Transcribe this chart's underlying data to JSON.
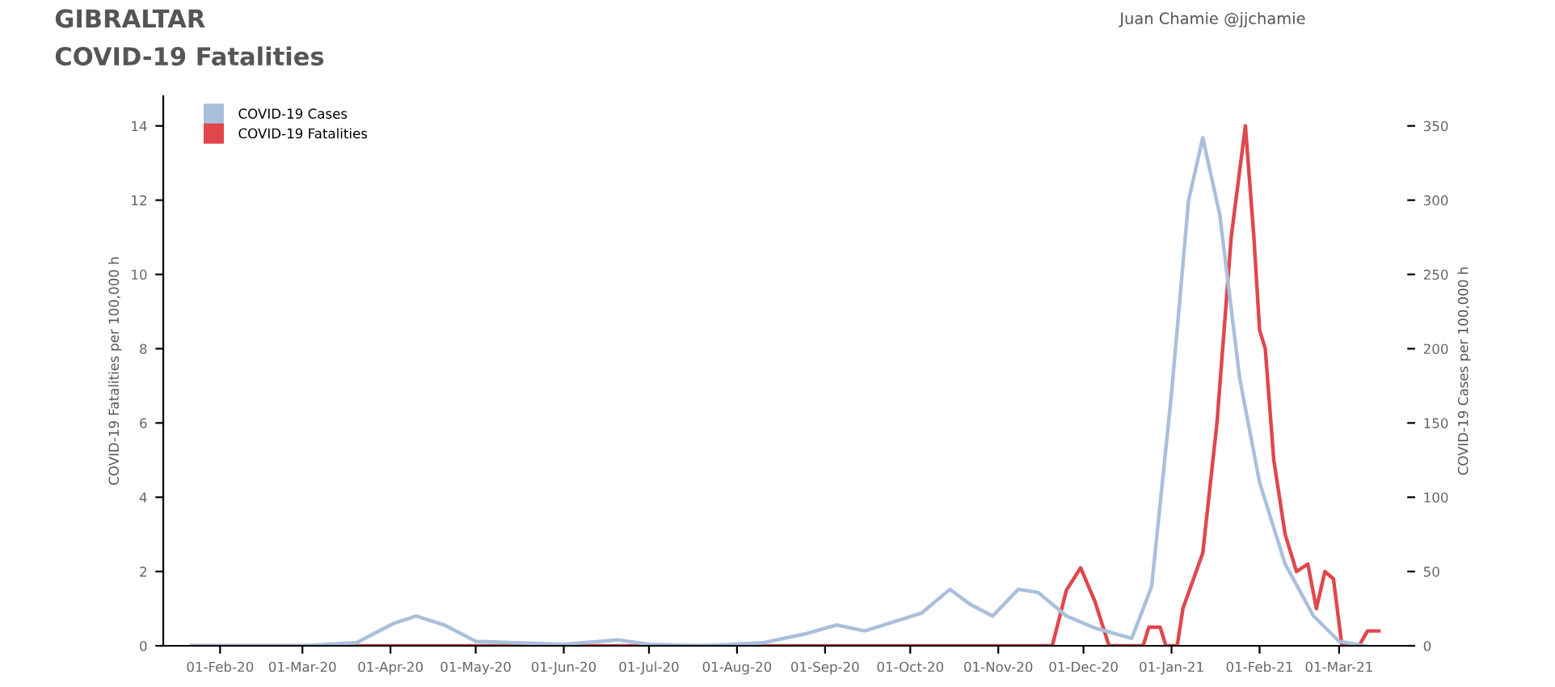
{
  "chart_data": {
    "type": "line",
    "title": "GIBRALTAR",
    "subtitle": "COVID-19 Fatalities",
    "ylabel": "COVID-19 Fatalities per 100,000 h",
    "y2label": "COVID-19 Cases per 100,000 h",
    "annotations": [
      "Juan Chamie @jjchamie"
    ],
    "legend": "top left",
    "grid": false,
    "series": [
      {
        "name": "COVID-19 Cases",
        "color": "#a9bfdc",
        "axis": "y2",
        "x": [
          "2020-01-22",
          "2020-03-01",
          "2020-03-20",
          "2020-04-02",
          "2020-04-10",
          "2020-04-20",
          "2020-05-01",
          "2020-05-15",
          "2020-06-01",
          "2020-06-20",
          "2020-07-01",
          "2020-07-20",
          "2020-08-10",
          "2020-08-25",
          "2020-09-05",
          "2020-09-15",
          "2020-09-25",
          "2020-10-05",
          "2020-10-15",
          "2020-10-22",
          "2020-10-30",
          "2020-11-08",
          "2020-11-15",
          "2020-11-25",
          "2020-12-05",
          "2020-12-18",
          "2020-12-25",
          "2021-01-01",
          "2021-01-07",
          "2021-01-12",
          "2021-01-18",
          "2021-01-25",
          "2021-02-01",
          "2021-02-10",
          "2021-02-20",
          "2021-03-01",
          "2021-03-10"
        ],
        "values": [
          0,
          0,
          2,
          15,
          20,
          14,
          3,
          2,
          1,
          4,
          1,
          0,
          2,
          8,
          14,
          10,
          16,
          22,
          38,
          28,
          20,
          38,
          36,
          20,
          12,
          5,
          40,
          170,
          300,
          342,
          290,
          180,
          110,
          55,
          20,
          3,
          0
        ]
      },
      {
        "name": "COVID-19 Fatalities",
        "color": "#e0474c",
        "x": [
          "2020-01-22",
          "2020-11-20",
          "2020-11-25",
          "2020-11-30",
          "2020-12-05",
          "2020-12-10",
          "2020-12-22",
          "2020-12-24",
          "2020-12-28",
          "2020-12-30",
          "2021-01-03",
          "2021-01-05",
          "2021-01-12",
          "2021-01-17",
          "2021-01-22",
          "2021-01-27",
          "2021-01-30",
          "2021-02-01",
          "2021-02-03",
          "2021-02-06",
          "2021-02-10",
          "2021-02-14",
          "2021-02-18",
          "2021-02-21",
          "2021-02-24",
          "2021-02-27",
          "2021-03-02",
          "2021-03-08",
          "2021-03-11",
          "2021-03-15"
        ],
        "values": [
          0,
          0,
          1.5,
          2.1,
          1.2,
          0,
          0,
          0.5,
          0.5,
          0,
          0,
          1,
          2.5,
          6,
          11,
          14,
          11,
          8.5,
          8,
          5,
          3,
          2,
          2.2,
          1,
          2,
          1.8,
          0,
          0,
          0.4,
          0.4
        ]
      }
    ],
    "xlim": [
      "2020-01-12",
      "2021-03-25"
    ],
    "xticks": [
      {
        "value": "2020-02-01",
        "label": "01-Feb-20"
      },
      {
        "value": "2020-03-01",
        "label": "01-Mar-20"
      },
      {
        "value": "2020-04-01",
        "label": "01-Apr-20"
      },
      {
        "value": "2020-05-01",
        "label": "01-May-20"
      },
      {
        "value": "2020-06-01",
        "label": "01-Jun-20"
      },
      {
        "value": "2020-07-01",
        "label": "01-Jul-20"
      },
      {
        "value": "2020-08-01",
        "label": "01-Aug-20"
      },
      {
        "value": "2020-09-01",
        "label": "01-Sep-20"
      },
      {
        "value": "2020-10-01",
        "label": "01-Oct-20"
      },
      {
        "value": "2020-11-01",
        "label": "01-Nov-20"
      },
      {
        "value": "2020-12-01",
        "label": "01-Dec-20"
      },
      {
        "value": "2021-01-01",
        "label": "01-Jan-21"
      },
      {
        "value": "2021-02-01",
        "label": "01-Feb-21"
      },
      {
        "value": "2021-03-01",
        "label": "01-Mar-21"
      }
    ],
    "ylim": [
      0,
      14.8
    ],
    "yticks": [
      0,
      2,
      4,
      6,
      8,
      10,
      12,
      14
    ],
    "y2lim": [
      0,
      370
    ],
    "y2ticks": [
      0,
      50,
      100,
      150,
      200,
      250,
      300,
      350
    ]
  }
}
